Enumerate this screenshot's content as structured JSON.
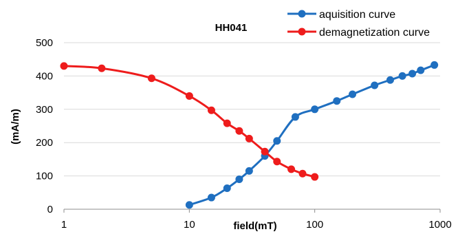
{
  "chart_data": {
    "type": "scatter",
    "title": "HH041",
    "xlabel": "field(mT)",
    "ylabel": "(mA/m)",
    "xscale": "log",
    "xlim": [
      1,
      1000
    ],
    "ylim": [
      0,
      500
    ],
    "x_ticks": [
      "1",
      "10",
      "100",
      "1000"
    ],
    "y_ticks": [
      "0",
      "100",
      "200",
      "300",
      "400",
      "500"
    ],
    "grid": "horizontal",
    "legend_position": "top-right",
    "series": [
      {
        "name": "aquisition curve",
        "color": "#1f6fc0",
        "points": [
          {
            "x": 10,
            "y": 13
          },
          {
            "x": 15,
            "y": 35
          },
          {
            "x": 20,
            "y": 63
          },
          {
            "x": 25,
            "y": 90
          },
          {
            "x": 30,
            "y": 115
          },
          {
            "x": 40,
            "y": 160
          },
          {
            "x": 50,
            "y": 205
          },
          {
            "x": 70,
            "y": 277
          },
          {
            "x": 100,
            "y": 300
          },
          {
            "x": 150,
            "y": 325
          },
          {
            "x": 200,
            "y": 345
          },
          {
            "x": 300,
            "y": 372
          },
          {
            "x": 400,
            "y": 388
          },
          {
            "x": 500,
            "y": 400
          },
          {
            "x": 600,
            "y": 407
          },
          {
            "x": 700,
            "y": 417
          },
          {
            "x": 900,
            "y": 433
          }
        ]
      },
      {
        "name": "demagnetization curve",
        "color": "#ee1c1c",
        "points": [
          {
            "x": 1,
            "y": 430
          },
          {
            "x": 2,
            "y": 423
          },
          {
            "x": 5,
            "y": 393
          },
          {
            "x": 10,
            "y": 340
          },
          {
            "x": 15,
            "y": 297
          },
          {
            "x": 20,
            "y": 258
          },
          {
            "x": 25,
            "y": 235
          },
          {
            "x": 30,
            "y": 212
          },
          {
            "x": 40,
            "y": 173
          },
          {
            "x": 50,
            "y": 143
          },
          {
            "x": 65,
            "y": 120
          },
          {
            "x": 80,
            "y": 107
          },
          {
            "x": 100,
            "y": 97
          }
        ]
      }
    ]
  }
}
